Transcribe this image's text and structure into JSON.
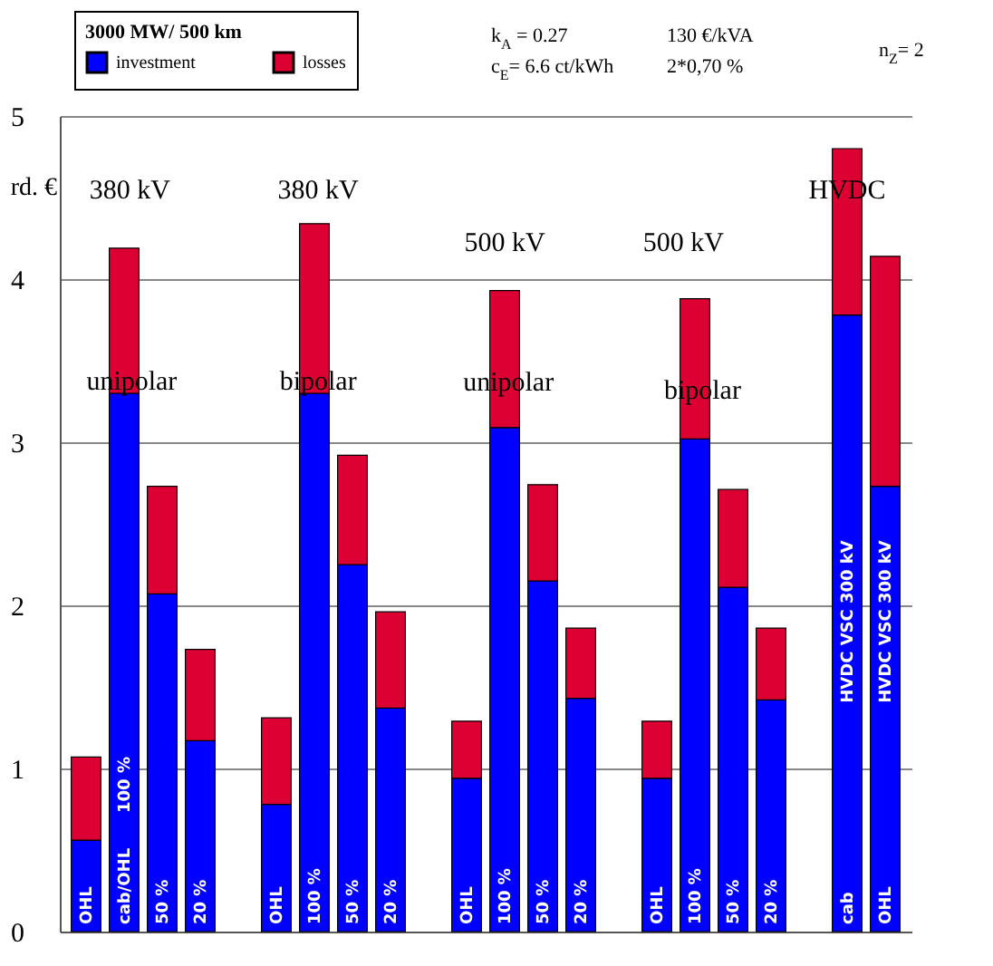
{
  "chart_data": {
    "type": "bar",
    "stacked": true,
    "ylabel": "rd. €",
    "legend_title": "3000 MW/  500 km",
    "legend": "top left",
    "grid": "y",
    "categories": [
      "OHL",
      "cab/OHL",
      "50 %",
      "20 %",
      null,
      "OHL",
      "100 %",
      "50 %",
      "20 %",
      null,
      "OHL",
      "100 %",
      "50 %",
      "20 %",
      null,
      "OHL",
      "100 %",
      "50 %",
      "20 %",
      null,
      "cab",
      "OHL"
    ],
    "ylim": [
      0,
      5
    ],
    "yticks": [
      0,
      1,
      2,
      3,
      4,
      5
    ],
    "series": [
      {
        "name": "investment",
        "color": "#0000ff",
        "values": [
          0.56,
          3.3,
          2.07,
          1.17,
          null,
          0.78,
          3.3,
          2.25,
          1.37,
          null,
          0.94,
          3.09,
          2.15,
          1.43,
          null,
          0.94,
          3.02,
          2.11,
          1.42,
          null,
          3.78,
          2.73
        ]
      },
      {
        "name": "losses",
        "color": "#dd0033",
        "values": [
          0.51,
          0.89,
          0.66,
          0.56,
          null,
          0.53,
          1.04,
          0.67,
          0.59,
          null,
          0.35,
          0.84,
          0.59,
          0.43,
          null,
          0.35,
          0.86,
          0.6,
          0.44,
          null,
          1.02,
          1.41
        ]
      }
    ],
    "annotations": [
      "k$_{A}$ = 0.27",
      "c$_{E}$= 6.6 ct/kWh",
      "130 €/kVA",
      "2*0,70 %",
      "n$_{Z}$= 2",
      "380 kV",
      "380 kV",
      "500 kV",
      "500 kV",
      "HVDC",
      "unipolar",
      "bipolar",
      "unipolar",
      "bipolar",
      "100 %",
      "HVDC VSC 300 kV",
      "HVDC VSC 300 kV"
    ]
  }
}
